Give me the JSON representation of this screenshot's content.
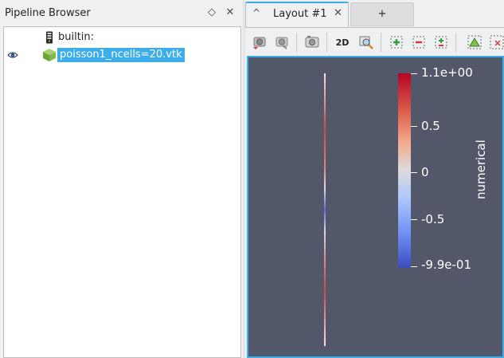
{
  "pipeline": {
    "title": "Pipeline Browser",
    "float_glyph": "◇",
    "close_glyph": "✕",
    "items": [
      {
        "label": "builtin:",
        "icon": "server-icon"
      },
      {
        "label": "poisson1_ncells=20.vtk",
        "icon": "dataset-cube-icon",
        "visible": true,
        "selected": true
      }
    ]
  },
  "tabs": {
    "collapse_glyph": "^",
    "active_label": "Layout #1",
    "close_glyph": "✕",
    "add_label": "+"
  },
  "toolbar": {
    "mode_2d_label": "2D",
    "buttons": [
      "reset-camera-icon",
      "zoom-to-data-icon",
      "capture-screenshot-icon",
      "2d-mode",
      "zoom-to-box-icon",
      "select-cells-on-icon",
      "select-points-on-icon",
      "select-cells-through-icon",
      "interactive-select-icon",
      "select-block-icon"
    ]
  },
  "colorbar": {
    "title": "numerical",
    "labels": [
      "1.1e+00",
      "0.5",
      "0",
      "-0.5",
      "-9.9e-01"
    ],
    "top_color": "#b40426",
    "mid_color": "#dddcdc",
    "bottom_color": "#3b4cc0"
  },
  "colors": {
    "accent": "#3daee9",
    "view_background": "#525869"
  }
}
